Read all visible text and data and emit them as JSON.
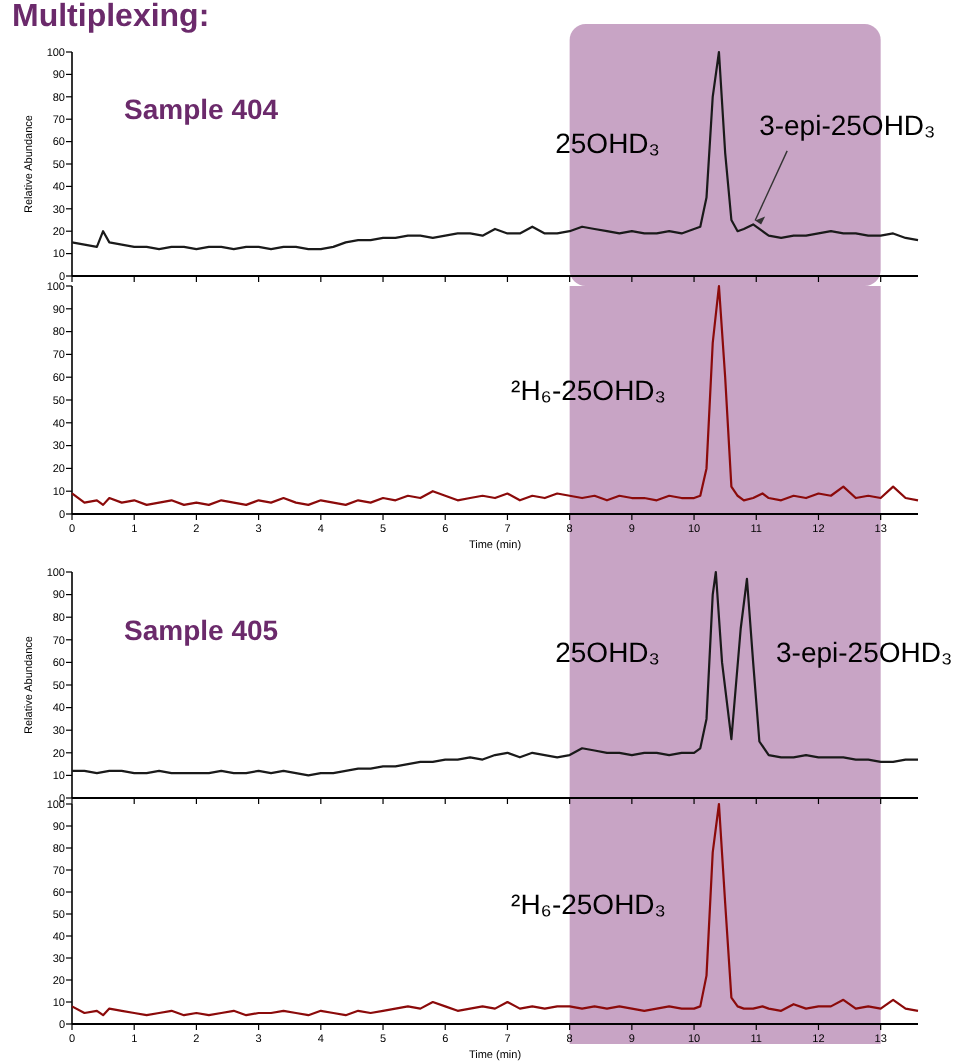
{
  "chart_data": [
    {
      "type": "line",
      "title": "Multiplexing:",
      "ylabel": "Relative Abundance",
      "xlim": [
        0,
        13.6
      ],
      "xticks": [
        0,
        1,
        2,
        3,
        4,
        5,
        6,
        7,
        8,
        9,
        10,
        11,
        12,
        13
      ],
      "ylim": [
        0,
        100
      ],
      "yticks": [
        0,
        10,
        20,
        30,
        40,
        50,
        60,
        70,
        80,
        90,
        100
      ],
      "tick_labels": "y",
      "bands": [
        {
          "axis": "x",
          "from": 8,
          "to": 13,
          "color": "#9b5a96"
        }
      ],
      "annotations": [
        "Sample 404",
        "25OHD₃",
        {
          "text": "3-epi-25OHD₃",
          "x": 10.95,
          "y": 23
        }
      ],
      "series": [
        {
          "color": "#1a1a1a",
          "x": [
            0,
            0.2,
            0.4,
            0.5,
            0.6,
            0.8,
            1,
            1.2,
            1.4,
            1.6,
            1.8,
            2,
            2.2,
            2.4,
            2.6,
            2.8,
            3,
            3.2,
            3.4,
            3.6,
            3.8,
            4,
            4.2,
            4.4,
            4.6,
            4.8,
            5,
            5.2,
            5.4,
            5.6,
            5.8,
            6,
            6.2,
            6.4,
            6.6,
            6.8,
            7,
            7.2,
            7.4,
            7.6,
            7.8,
            8,
            8.2,
            8.4,
            8.6,
            8.8,
            9,
            9.2,
            9.4,
            9.6,
            9.8,
            10,
            10.1,
            10.2,
            10.3,
            10.4,
            10.5,
            10.6,
            10.7,
            10.8,
            10.95,
            11.1,
            11.2,
            11.4,
            11.6,
            11.8,
            12,
            12.2,
            12.4,
            12.6,
            12.8,
            13,
            13.2,
            13.4,
            13.6
          ],
          "values": [
            15,
            14,
            13,
            20,
            15,
            14,
            13,
            13,
            12,
            13,
            13,
            12,
            13,
            13,
            12,
            13,
            13,
            12,
            13,
            13,
            12,
            12,
            13,
            15,
            16,
            16,
            17,
            17,
            18,
            18,
            17,
            18,
            19,
            19,
            18,
            21,
            19,
            19,
            22,
            19,
            19,
            20,
            22,
            21,
            20,
            19,
            20,
            19,
            19,
            20,
            19,
            21,
            22,
            35,
            80,
            100,
            55,
            25,
            20,
            21,
            23,
            20,
            18,
            17,
            18,
            18,
            19,
            20,
            19,
            19,
            18,
            18,
            19,
            17,
            16
          ]
        }
      ]
    },
    {
      "type": "line",
      "xlabel": "Time (min)",
      "xlim": [
        0,
        13.6
      ],
      "xticks": [
        0,
        1,
        2,
        3,
        4,
        5,
        6,
        7,
        8,
        9,
        10,
        11,
        12,
        13
      ],
      "ylim": [
        0,
        100
      ],
      "yticks": [
        0,
        10,
        20,
        30,
        40,
        50,
        60,
        70,
        80,
        90,
        100
      ],
      "bands": [
        {
          "axis": "x",
          "from": 8,
          "to": 13,
          "color": "#9b5a96"
        }
      ],
      "annotations": [
        "²H₆-25OHD₃"
      ],
      "series": [
        {
          "color": "#8b0a0a",
          "x": [
            0,
            0.2,
            0.4,
            0.5,
            0.6,
            0.8,
            1,
            1.2,
            1.4,
            1.6,
            1.8,
            2,
            2.2,
            2.4,
            2.6,
            2.8,
            3,
            3.2,
            3.4,
            3.6,
            3.8,
            4,
            4.2,
            4.4,
            4.6,
            4.8,
            5,
            5.2,
            5.4,
            5.6,
            5.8,
            6,
            6.2,
            6.4,
            6.6,
            6.8,
            7,
            7.2,
            7.4,
            7.6,
            7.8,
            8,
            8.2,
            8.4,
            8.6,
            8.8,
            9,
            9.2,
            9.4,
            9.6,
            9.8,
            10,
            10.1,
            10.2,
            10.3,
            10.4,
            10.5,
            10.6,
            10.7,
            10.8,
            10.95,
            11.1,
            11.2,
            11.4,
            11.6,
            11.8,
            12,
            12.2,
            12.4,
            12.6,
            12.8,
            13,
            13.2,
            13.4,
            13.6
          ],
          "values": [
            9,
            5,
            6,
            4,
            7,
            5,
            6,
            4,
            5,
            6,
            4,
            5,
            4,
            6,
            5,
            4,
            6,
            5,
            7,
            5,
            4,
            6,
            5,
            4,
            6,
            5,
            7,
            6,
            8,
            7,
            10,
            8,
            6,
            7,
            8,
            7,
            9,
            6,
            8,
            7,
            9,
            8,
            7,
            8,
            6,
            8,
            7,
            7,
            6,
            8,
            7,
            7,
            8,
            20,
            75,
            100,
            60,
            12,
            8,
            6,
            7,
            9,
            7,
            6,
            8,
            7,
            9,
            8,
            12,
            7,
            8,
            7,
            12,
            7,
            6
          ]
        }
      ]
    },
    {
      "type": "line",
      "ylabel": "Relative Abundance",
      "xlim": [
        0,
        13.6
      ],
      "xticks": [
        0,
        1,
        2,
        3,
        4,
        5,
        6,
        7,
        8,
        9,
        10,
        11,
        12,
        13
      ],
      "ylim": [
        0,
        100
      ],
      "yticks": [
        0,
        10,
        20,
        30,
        40,
        50,
        60,
        70,
        80,
        90,
        100
      ],
      "tick_labels": "y",
      "bands": [
        {
          "axis": "x",
          "from": 8,
          "to": 13,
          "color": "#9b5a96"
        }
      ],
      "annotations": [
        "Sample 405",
        "25OHD₃",
        "3-epi-25OHD₃"
      ],
      "series": [
        {
          "color": "#1a1a1a",
          "x": [
            0,
            0.2,
            0.4,
            0.6,
            0.8,
            1,
            1.2,
            1.4,
            1.6,
            1.8,
            2,
            2.2,
            2.4,
            2.6,
            2.8,
            3,
            3.2,
            3.4,
            3.6,
            3.8,
            4,
            4.2,
            4.4,
            4.6,
            4.8,
            5,
            5.2,
            5.4,
            5.6,
            5.8,
            6,
            6.2,
            6.4,
            6.6,
            6.8,
            7,
            7.2,
            7.4,
            7.6,
            7.8,
            8,
            8.2,
            8.4,
            8.6,
            8.8,
            9,
            9.2,
            9.4,
            9.6,
            9.8,
            10,
            10.1,
            10.2,
            10.3,
            10.35,
            10.45,
            10.6,
            10.75,
            10.85,
            10.95,
            11.05,
            11.2,
            11.4,
            11.6,
            11.8,
            12,
            12.2,
            12.4,
            12.6,
            12.8,
            13,
            13.2,
            13.4,
            13.6
          ],
          "values": [
            12,
            12,
            11,
            12,
            12,
            11,
            11,
            12,
            11,
            11,
            11,
            11,
            12,
            11,
            11,
            12,
            11,
            12,
            11,
            10,
            11,
            11,
            12,
            13,
            13,
            14,
            14,
            15,
            16,
            16,
            17,
            17,
            18,
            17,
            19,
            20,
            18,
            20,
            19,
            18,
            19,
            22,
            21,
            20,
            20,
            19,
            20,
            20,
            19,
            20,
            20,
            22,
            35,
            90,
            100,
            60,
            26,
            75,
            97,
            60,
            25,
            19,
            18,
            18,
            19,
            18,
            18,
            18,
            17,
            17,
            16,
            16,
            17,
            17
          ]
        }
      ]
    },
    {
      "type": "line",
      "xlabel": "Time (min)",
      "xlim": [
        0,
        13.6
      ],
      "xticks": [
        0,
        1,
        2,
        3,
        4,
        5,
        6,
        7,
        8,
        9,
        10,
        11,
        12,
        13
      ],
      "ylim": [
        0,
        100
      ],
      "yticks": [
        0,
        10,
        20,
        30,
        40,
        50,
        60,
        70,
        80,
        90,
        100
      ],
      "bands": [
        {
          "axis": "x",
          "from": 8,
          "to": 13,
          "color": "#9b5a96"
        }
      ],
      "annotations": [
        "²H₆-25OHD₃"
      ],
      "series": [
        {
          "color": "#8b0a0a",
          "x": [
            0,
            0.2,
            0.4,
            0.5,
            0.6,
            0.8,
            1,
            1.2,
            1.4,
            1.6,
            1.8,
            2,
            2.2,
            2.4,
            2.6,
            2.8,
            3,
            3.2,
            3.4,
            3.6,
            3.8,
            4,
            4.2,
            4.4,
            4.6,
            4.8,
            5,
            5.2,
            5.4,
            5.6,
            5.8,
            6,
            6.2,
            6.4,
            6.6,
            6.8,
            7,
            7.2,
            7.4,
            7.6,
            7.8,
            8,
            8.2,
            8.4,
            8.6,
            8.8,
            9,
            9.2,
            9.4,
            9.6,
            9.8,
            10,
            10.1,
            10.2,
            10.3,
            10.4,
            10.5,
            10.6,
            10.7,
            10.8,
            10.95,
            11.1,
            11.2,
            11.4,
            11.6,
            11.8,
            12,
            12.2,
            12.4,
            12.6,
            12.8,
            13,
            13.2,
            13.4,
            13.6
          ],
          "values": [
            8,
            5,
            6,
            4,
            7,
            6,
            5,
            4,
            5,
            6,
            4,
            5,
            4,
            5,
            6,
            4,
            5,
            5,
            6,
            5,
            4,
            6,
            5,
            4,
            6,
            5,
            6,
            7,
            8,
            7,
            10,
            8,
            6,
            7,
            8,
            7,
            10,
            7,
            8,
            7,
            8,
            8,
            7,
            8,
            7,
            8,
            7,
            6,
            7,
            8,
            7,
            7,
            8,
            22,
            78,
            100,
            55,
            12,
            8,
            7,
            7,
            8,
            7,
            6,
            9,
            7,
            8,
            8,
            11,
            7,
            8,
            7,
            11,
            7,
            6
          ]
        }
      ]
    }
  ]
}
